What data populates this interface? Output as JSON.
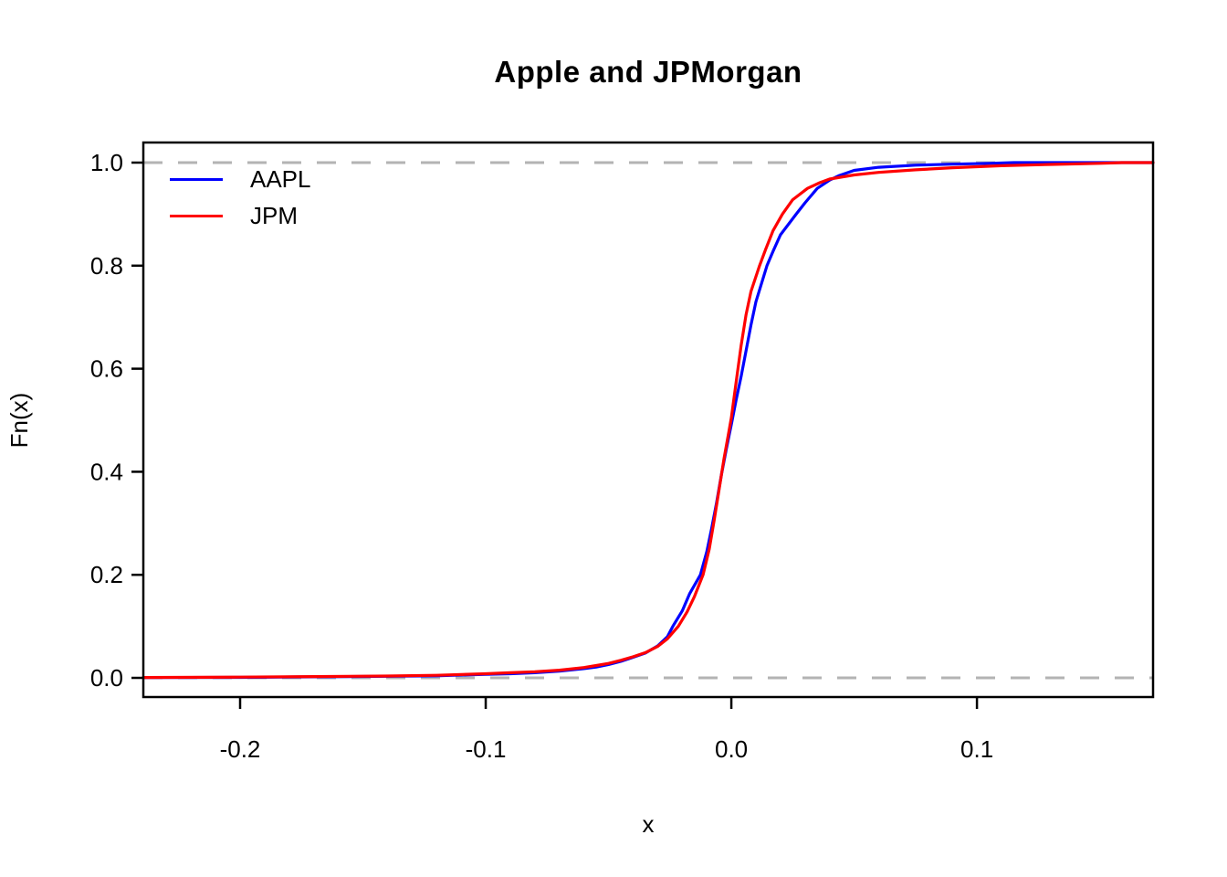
{
  "chart_data": {
    "type": "line",
    "subtype": "ecdf",
    "title": "Apple and JPMorgan",
    "xlabel": "x",
    "ylabel": "Fn(x)",
    "xlim": [
      -0.2394,
      0.1717
    ],
    "ylim": [
      -0.0372,
      1.039
    ],
    "grid": false,
    "x_ticks": {
      "values": [
        -0.2,
        -0.1,
        0.0,
        0.1
      ],
      "labels": [
        "-0.2",
        "-0.1",
        "0.0",
        "0.1"
      ]
    },
    "y_ticks": {
      "values": [
        0.0,
        0.2,
        0.4,
        0.6,
        0.8,
        1.0
      ],
      "labels": [
        "0.0",
        "0.2",
        "0.4",
        "0.6",
        "0.8",
        "1.0"
      ]
    },
    "reference_lines": {
      "y_values": [
        0.0,
        1.0
      ],
      "style": "dashed",
      "color": "#b3b3b3"
    },
    "axis_color": "#000000",
    "legend": {
      "position": "top-left",
      "entries": [
        {
          "label": "AAPL",
          "color": "#0000ff"
        },
        {
          "label": "JPM",
          "color": "#ff0000"
        }
      ]
    },
    "series": [
      {
        "name": "AAPL",
        "color": "#0000ff",
        "points": [
          [
            -0.2394,
            0.0005
          ],
          [
            -0.2,
            0.001
          ],
          [
            -0.17,
            0.002
          ],
          [
            -0.14,
            0.003
          ],
          [
            -0.12,
            0.004
          ],
          [
            -0.1,
            0.007
          ],
          [
            -0.09,
            0.008
          ],
          [
            -0.08,
            0.01
          ],
          [
            -0.07,
            0.013
          ],
          [
            -0.06,
            0.018
          ],
          [
            -0.055,
            0.021
          ],
          [
            -0.05,
            0.026
          ],
          [
            -0.045,
            0.032
          ],
          [
            -0.04,
            0.04
          ],
          [
            -0.035,
            0.048
          ],
          [
            -0.03,
            0.062
          ],
          [
            -0.026,
            0.08
          ],
          [
            -0.0238,
            0.1
          ],
          [
            -0.02,
            0.13
          ],
          [
            -0.017,
            0.163
          ],
          [
            -0.0126,
            0.2
          ],
          [
            -0.01,
            0.245
          ],
          [
            -0.008,
            0.29
          ],
          [
            -0.006,
            0.34
          ],
          [
            -0.004,
            0.395
          ],
          [
            -0.002,
            0.445
          ],
          [
            0.0,
            0.492
          ],
          [
            0.002,
            0.54
          ],
          [
            0.004,
            0.585
          ],
          [
            0.006,
            0.635
          ],
          [
            0.008,
            0.685
          ],
          [
            0.01,
            0.73
          ],
          [
            0.0145,
            0.8
          ],
          [
            0.017,
            0.828
          ],
          [
            0.02,
            0.86
          ],
          [
            0.0264,
            0.9
          ],
          [
            0.03,
            0.922
          ],
          [
            0.035,
            0.95
          ],
          [
            0.04,
            0.966
          ],
          [
            0.044,
            0.975
          ],
          [
            0.05,
            0.985
          ],
          [
            0.06,
            0.991
          ],
          [
            0.075,
            0.995
          ],
          [
            0.09,
            0.997
          ],
          [
            0.105,
            0.9985
          ],
          [
            0.115,
            1.0
          ],
          [
            0.1717,
            1.0
          ]
        ]
      },
      {
        "name": "JPM",
        "color": "#ff0000",
        "points": [
          [
            -0.2394,
            0.0008
          ],
          [
            -0.2,
            0.0015
          ],
          [
            -0.17,
            0.0025
          ],
          [
            -0.14,
            0.0035
          ],
          [
            -0.12,
            0.005
          ],
          [
            -0.1,
            0.008
          ],
          [
            -0.09,
            0.01
          ],
          [
            -0.08,
            0.012
          ],
          [
            -0.07,
            0.015
          ],
          [
            -0.06,
            0.02
          ],
          [
            -0.055,
            0.024
          ],
          [
            -0.05,
            0.028
          ],
          [
            -0.045,
            0.034
          ],
          [
            -0.04,
            0.041
          ],
          [
            -0.035,
            0.049
          ],
          [
            -0.03,
            0.061
          ],
          [
            -0.026,
            0.076
          ],
          [
            -0.0216,
            0.1
          ],
          [
            -0.018,
            0.128
          ],
          [
            -0.015,
            0.158
          ],
          [
            -0.0115,
            0.2
          ],
          [
            -0.009,
            0.25
          ],
          [
            -0.007,
            0.305
          ],
          [
            -0.005,
            0.365
          ],
          [
            -0.003,
            0.425
          ],
          [
            -0.001,
            0.478
          ],
          [
            0.0,
            0.505
          ],
          [
            0.002,
            0.575
          ],
          [
            0.004,
            0.645
          ],
          [
            0.006,
            0.705
          ],
          [
            0.008,
            0.75
          ],
          [
            0.0115,
            0.8
          ],
          [
            0.014,
            0.832
          ],
          [
            0.017,
            0.868
          ],
          [
            0.0208,
            0.9
          ],
          [
            0.025,
            0.928
          ],
          [
            0.031,
            0.95
          ],
          [
            0.036,
            0.961
          ],
          [
            0.04,
            0.968
          ],
          [
            0.05,
            0.976
          ],
          [
            0.06,
            0.981
          ],
          [
            0.075,
            0.986
          ],
          [
            0.09,
            0.99
          ],
          [
            0.11,
            0.994
          ],
          [
            0.13,
            0.9965
          ],
          [
            0.15,
            0.9985
          ],
          [
            0.159,
            1.0
          ],
          [
            0.1717,
            1.0
          ]
        ]
      }
    ]
  }
}
